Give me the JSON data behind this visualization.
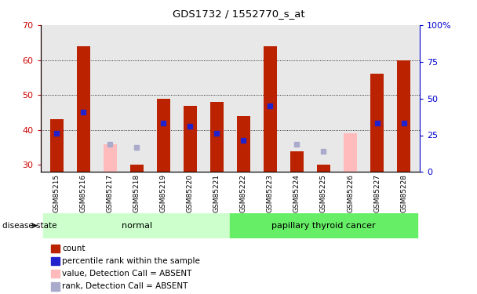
{
  "title": "GDS1732 / 1552770_s_at",
  "samples": [
    "GSM85215",
    "GSM85216",
    "GSM85217",
    "GSM85218",
    "GSM85219",
    "GSM85220",
    "GSM85221",
    "GSM85222",
    "GSM85223",
    "GSM85224",
    "GSM85225",
    "GSM85226",
    "GSM85227",
    "GSM85228"
  ],
  "count_values": [
    43,
    64,
    null,
    30,
    49,
    47,
    48,
    44,
    64,
    34,
    30,
    null,
    56,
    60
  ],
  "count_absent": [
    null,
    null,
    36,
    null,
    null,
    null,
    null,
    null,
    null,
    null,
    null,
    39,
    null,
    null
  ],
  "percentile_values": [
    39,
    45,
    null,
    null,
    42,
    41,
    39,
    37,
    47,
    null,
    null,
    null,
    42,
    42
  ],
  "percentile_absent": [
    null,
    null,
    36,
    35,
    null,
    null,
    null,
    null,
    null,
    36,
    34,
    null,
    null,
    null
  ],
  "ylim_left": [
    28,
    70
  ],
  "ylim_right": [
    0,
    100
  ],
  "yticks_left": [
    30,
    40,
    50,
    60,
    70
  ],
  "yticks_right": [
    0,
    25,
    50,
    75,
    100
  ],
  "ytick_right_labels": [
    "0",
    "25",
    "50",
    "75",
    "100%"
  ],
  "normal_indices": [
    0,
    1,
    2,
    3,
    4,
    5,
    6
  ],
  "cancer_indices": [
    7,
    8,
    9,
    10,
    11,
    12,
    13
  ],
  "normal_label": "normal",
  "cancer_label": "papillary thyroid cancer",
  "disease_state_label": "disease state",
  "bar_color": "#bb2200",
  "absent_bar_color": "#ffbbbb",
  "percentile_color": "#2222cc",
  "percentile_absent_color": "#aaaacc",
  "normal_bg": "#ccffcc",
  "cancer_bg": "#66ee66",
  "plot_bg": "#e8e8e8",
  "tick_bg": "#d0d0d0",
  "left_axis_color": "#cc0000",
  "right_axis_color": "#0000cc",
  "bar_width": 0.5,
  "grid_yticks": [
    40,
    50,
    60
  ],
  "legend_items": [
    {
      "color": "#bb2200",
      "label": "count"
    },
    {
      "color": "#2222cc",
      "label": "percentile rank within the sample"
    },
    {
      "color": "#ffbbbb",
      "label": "value, Detection Call = ABSENT"
    },
    {
      "color": "#aaaacc",
      "label": "rank, Detection Call = ABSENT"
    }
  ]
}
